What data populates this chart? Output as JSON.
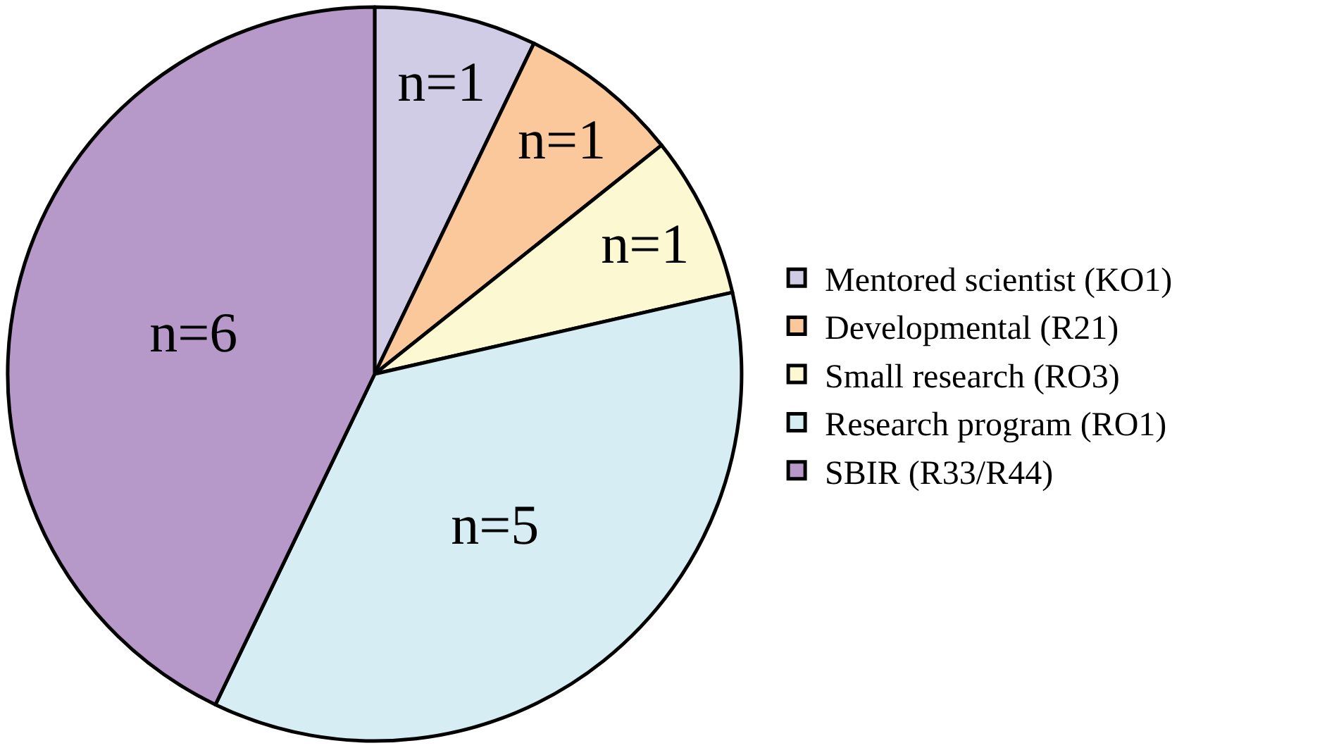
{
  "chart_data": {
    "type": "pie",
    "categories": [
      "Mentored scientist (KO1)",
      "Developmental (R21)",
      "Small research (RO3)",
      "Research program (RO1)",
      "SBIR (R33/R44)"
    ],
    "values": [
      1,
      1,
      1,
      5,
      6
    ],
    "value_labels": [
      "n=1",
      "n=1",
      "n=1",
      "n=5",
      "n=6"
    ],
    "colors": [
      "#d0cce6",
      "#fac89b",
      "#fbf8d2",
      "#d5edf3",
      "#b699c8"
    ],
    "legend": "right"
  }
}
